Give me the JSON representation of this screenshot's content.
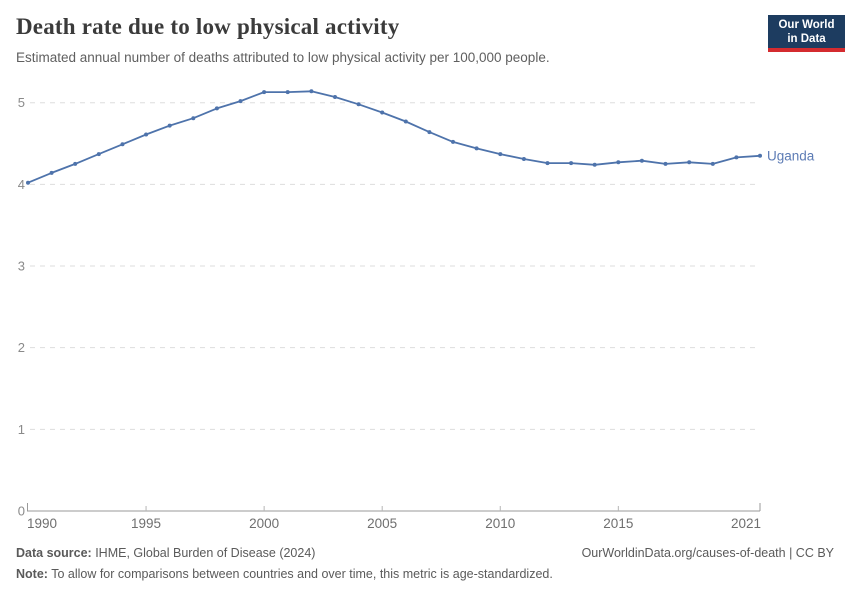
{
  "header": {
    "title": "Death rate due to low physical activity",
    "subtitle": "Estimated annual number of deaths attributed to low physical activity per 100,000 people.",
    "logo_line1": "Our World",
    "logo_line2": "in Data"
  },
  "chart_data": {
    "type": "line",
    "title": "Death rate due to low physical activity",
    "x": [
      1990,
      1991,
      1992,
      1993,
      1994,
      1995,
      1996,
      1997,
      1998,
      1999,
      2000,
      2001,
      2002,
      2003,
      2004,
      2005,
      2006,
      2007,
      2008,
      2009,
      2010,
      2011,
      2012,
      2013,
      2014,
      2015,
      2016,
      2017,
      2018,
      2019,
      2020,
      2021
    ],
    "series": [
      {
        "name": "Uganda",
        "color": "#4e73ab",
        "values": [
          4.02,
          4.14,
          4.25,
          4.37,
          4.49,
          4.61,
          4.72,
          4.81,
          4.93,
          5.02,
          5.13,
          5.13,
          5.14,
          5.07,
          4.98,
          4.88,
          4.77,
          4.64,
          4.52,
          4.44,
          4.37,
          4.31,
          4.26,
          4.26,
          4.24,
          4.27,
          4.29,
          4.25,
          4.27,
          4.25,
          4.33,
          4.35
        ]
      }
    ],
    "xlabel": "",
    "ylabel": "",
    "xlim": [
      1990,
      2021
    ],
    "ylim": [
      0,
      5.3
    ],
    "xticks": [
      1990,
      1995,
      2000,
      2005,
      2010,
      2015,
      2021
    ],
    "yticks": [
      0,
      1,
      2,
      3,
      4,
      5
    ],
    "grid": "horizontal-dashed",
    "legend_position": "end-of-line-label",
    "end_label": "Uganda"
  },
  "footer": {
    "datasource_label": "Data source:",
    "datasource_text": " IHME, Global Burden of Disease (2024)",
    "link": "OurWorldinData.org/causes-of-death | CC BY",
    "note_label": "Note:",
    "note_text": " To allow for comparisons between countries and over time, this metric is age-standardized."
  },
  "colors": {
    "line": "#4e73ab",
    "end_label": "#5d7cb5",
    "grid": "#dddddd",
    "axis": "#9a9a9a",
    "tick": "#b5b5b5",
    "ytick_text": "#8a8a8a",
    "xtick_text": "#6f6f6f",
    "logo_bg": "#1d3c60",
    "logo_bar": "#d42b2f"
  }
}
